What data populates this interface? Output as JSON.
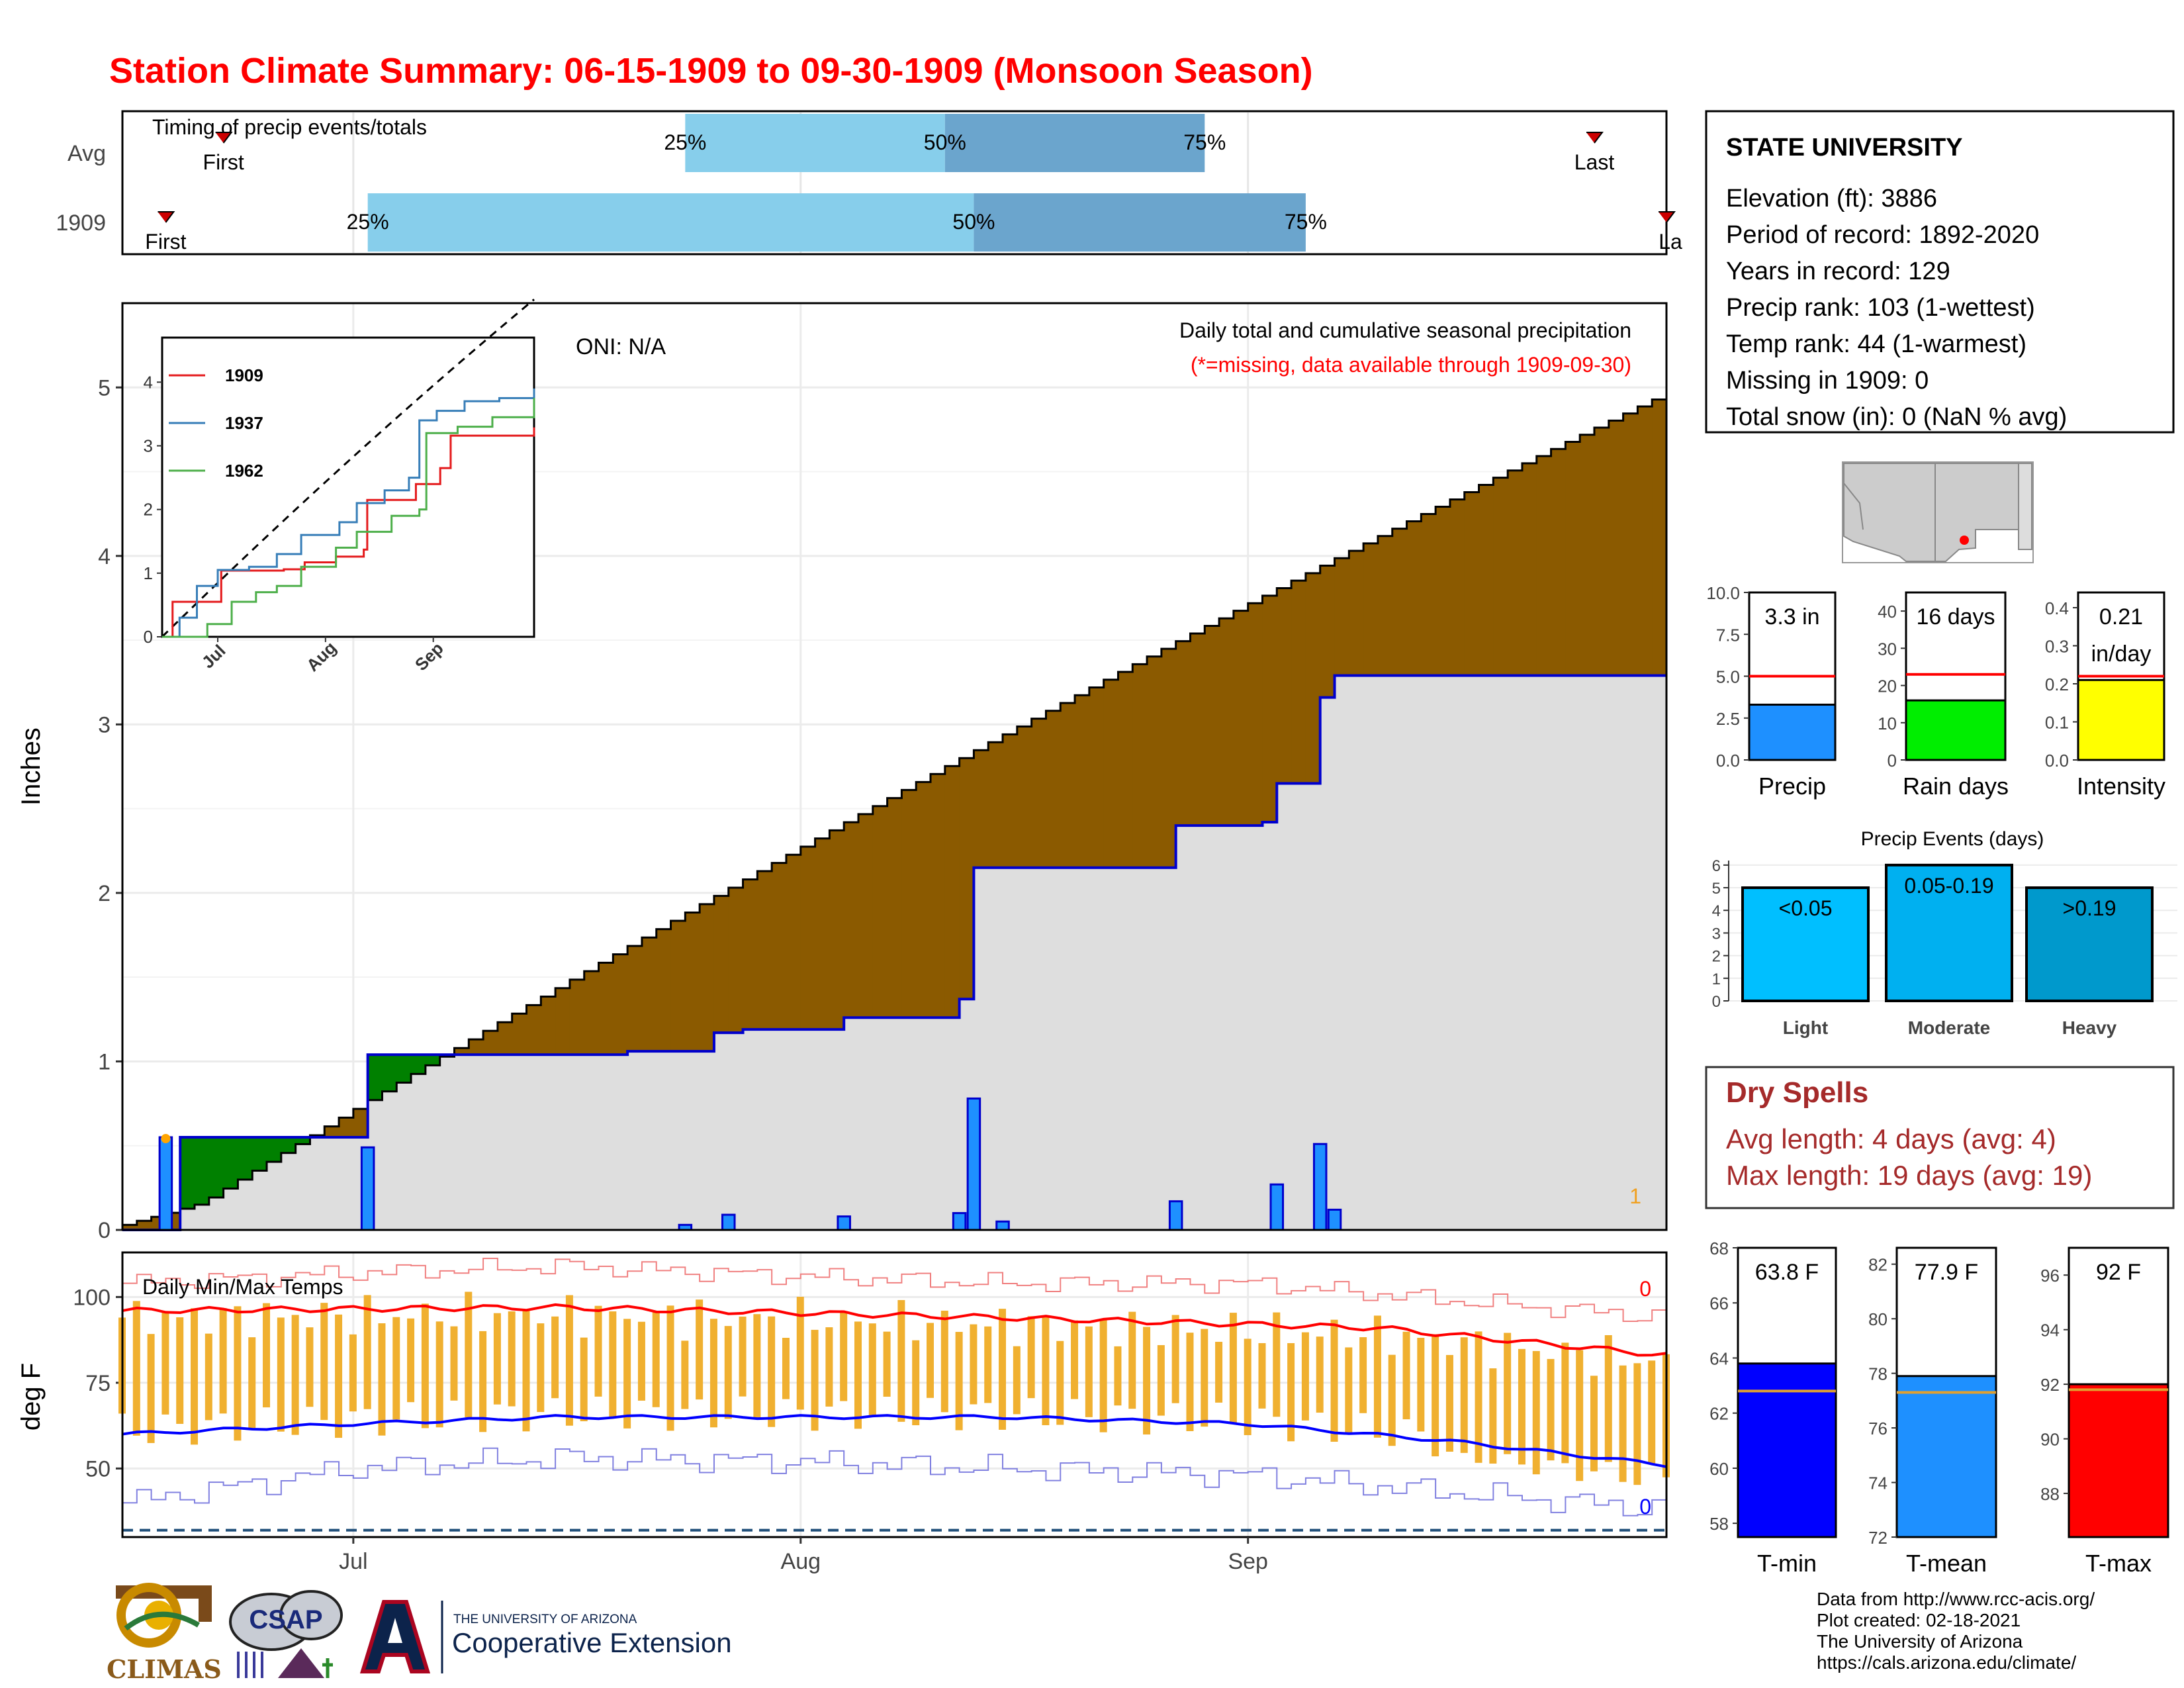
{
  "title": "Station Climate Summary: 06-15-1909 to 09-30-1909 (Monsoon Season)",
  "colors": {
    "title": "#ff0000",
    "precip_bar": "#1e90ff",
    "cum_fill": "#8b5a00",
    "below_fill": "#008000",
    "observed": "#0000cd",
    "tmax": "#ff0000",
    "tmin": "#0000ff",
    "tbar": "#f0b030",
    "light": "#00bfff",
    "moderate": "#00b0f0",
    "heavy": "#0099cc",
    "dry_spell": "#a52a2a"
  },
  "station": {
    "name": "STATE UNIVERSITY",
    "lines": [
      "Elevation (ft): 3886",
      "Period of record: 1892-2020",
      "Years in record: 129",
      "Precip rank: 103 (1-wettest)",
      "Temp rank: 44 (1-warmest)",
      "Missing in 1909: 0",
      "Total snow (in): 0 (NaN % avg)"
    ]
  },
  "dry_spells": {
    "title": "Dry Spells",
    "avg": "Avg length: 4 days (avg: 4)",
    "max": "Max length: 19 days (avg: 19)"
  },
  "footer": [
    "Data from http://www.rcc-acis.org/",
    "Plot created: 02-18-2021",
    "The University of Arizona",
    "https://cals.arizona.edu/climate/"
  ],
  "logos": {
    "climas": "CLIMAS",
    "csap": "CSAP",
    "ua_small": "THE UNIVERSITY OF ARIZONA",
    "ua_big": "Cooperative Extension"
  },
  "chart_data": [
    {
      "id": "timing",
      "type": "bar",
      "title": "Timing of precip events/totals",
      "rows": [
        {
          "label": "Avg",
          "first": "06-22",
          "p25": "07-24",
          "p50": "08-11",
          "p75": "08-29",
          "last": "09-25"
        },
        {
          "label": "1909",
          "first": "06-18",
          "p25": "07-02",
          "p50": "08-13",
          "p75": "09-05",
          "last": "09-30"
        }
      ],
      "marker_labels": {
        "first": "First",
        "last": "Last",
        "last_1909": "La",
        "p25": "25%",
        "p50": "50%",
        "p75": "75%"
      }
    },
    {
      "id": "precip",
      "type": "area",
      "title": "Daily total and cumulative seasonal precipitation",
      "subtitle": "(*=missing, data available through 1909-09-30)",
      "oni": "ONI: N/A",
      "ylabel": "Inches",
      "ylim": [
        0,
        5.5
      ],
      "yticks": [
        0,
        1,
        2,
        3,
        4,
        5
      ],
      "xticks": [
        "Jul",
        "Aug",
        "Sep"
      ],
      "corner_label": "1",
      "avg_cumulative": {
        "start": 0.03,
        "end": 4.97
      },
      "observed_cumulative_steps": [
        [
          "06-15",
          0
        ],
        [
          "06-19",
          0.55
        ],
        [
          "07-02",
          1.04
        ],
        [
          "07-20",
          1.06
        ],
        [
          "07-26",
          1.17
        ],
        [
          "07-28",
          1.19
        ],
        [
          "08-04",
          1.26
        ],
        [
          "08-12",
          1.37
        ],
        [
          "08-13",
          2.15
        ],
        [
          "08-27",
          2.4
        ],
        [
          "09-02",
          2.42
        ],
        [
          "09-03",
          2.65
        ],
        [
          "09-06",
          3.16
        ],
        [
          "09-07",
          3.29
        ],
        [
          "09-30",
          3.29
        ]
      ],
      "daily": [
        [
          "06-18",
          0.55
        ],
        [
          "07-02",
          0.49
        ],
        [
          "07-24",
          0.03
        ],
        [
          "07-27",
          0.09
        ],
        [
          "08-04",
          0.08
        ],
        [
          "08-12",
          0.1
        ],
        [
          "08-13",
          0.78
        ],
        [
          "08-15",
          0.05
        ],
        [
          "08-27",
          0.17
        ],
        [
          "09-03",
          0.27
        ],
        [
          "09-06",
          0.51
        ],
        [
          "09-07",
          0.12
        ]
      ]
    },
    {
      "id": "inset",
      "type": "line",
      "series": [
        {
          "name": "1909",
          "color": "#e41a1c",
          "points": [
            [
              "06-15",
              0
            ],
            [
              "06-18",
              0.55
            ],
            [
              "07-02",
              1.04
            ],
            [
              "07-20",
              1.06
            ],
            [
              "07-26",
              1.17
            ],
            [
              "08-04",
              1.26
            ],
            [
              "08-12",
              1.37
            ],
            [
              "08-13",
              2.15
            ],
            [
              "08-27",
              2.4
            ],
            [
              "09-03",
              2.65
            ],
            [
              "09-06",
              3.16
            ],
            [
              "09-30",
              3.29
            ]
          ]
        },
        {
          "name": "1937",
          "color": "#377eb8",
          "points": [
            [
              "06-15",
              0
            ],
            [
              "06-20",
              0.3
            ],
            [
              "06-25",
              0.8
            ],
            [
              "07-01",
              1.05
            ],
            [
              "07-10",
              1.1
            ],
            [
              "07-18",
              1.3
            ],
            [
              "07-25",
              1.6
            ],
            [
              "08-05",
              1.8
            ],
            [
              "08-10",
              2.1
            ],
            [
              "08-18",
              2.3
            ],
            [
              "08-25",
              2.5
            ],
            [
              "08-28",
              3.4
            ],
            [
              "09-02",
              3.55
            ],
            [
              "09-10",
              3.7
            ],
            [
              "09-20",
              3.75
            ],
            [
              "09-30",
              3.9
            ]
          ]
        },
        {
          "name": "1962",
          "color": "#4daf4a",
          "points": [
            [
              "06-15",
              0
            ],
            [
              "06-28",
              0.2
            ],
            [
              "07-05",
              0.55
            ],
            [
              "07-12",
              0.7
            ],
            [
              "07-18",
              0.8
            ],
            [
              "07-25",
              1.1
            ],
            [
              "08-04",
              1.4
            ],
            [
              "08-10",
              1.65
            ],
            [
              "08-20",
              1.9
            ],
            [
              "08-28",
              2.0
            ],
            [
              "08-30",
              3.2
            ],
            [
              "09-08",
              3.3
            ],
            [
              "09-18",
              3.45
            ],
            [
              "09-30",
              3.75
            ]
          ]
        }
      ],
      "avg_line": {
        "start": 0,
        "end": 5.3
      },
      "ylim": [
        0,
        4.7
      ],
      "yticks": [
        0,
        1,
        2,
        3,
        4
      ],
      "xticks": [
        "Jul",
        "Aug",
        "Sep"
      ]
    },
    {
      "id": "temps",
      "type": "bar",
      "title": "Daily Min/Max Temps",
      "ylabel": "deg F",
      "ylim": [
        30,
        113
      ],
      "yticks": [
        50,
        75,
        100
      ],
      "xticks": [
        "Jul",
        "Aug",
        "Sep"
      ],
      "corner_top": "0",
      "corner_bottom": "0",
      "avg_tmax": [
        [
          "06-15",
          96
        ],
        [
          "07-15",
          97
        ],
        [
          "08-15",
          94
        ],
        [
          "09-10",
          91
        ],
        [
          "09-30",
          83
        ]
      ],
      "avg_tmin": [
        [
          "06-15",
          60
        ],
        [
          "07-01",
          63
        ],
        [
          "07-15",
          65
        ],
        [
          "08-15",
          65
        ],
        [
          "09-01",
          63
        ],
        [
          "09-15",
          58
        ],
        [
          "09-30",
          51
        ]
      ],
      "record_max": [
        [
          "06-15",
          104
        ],
        [
          "07-01",
          107
        ],
        [
          "07-15",
          109
        ],
        [
          "08-01",
          106
        ],
        [
          "08-15",
          104
        ],
        [
          "09-01",
          104
        ],
        [
          "09-15",
          99
        ],
        [
          "09-30",
          94
        ]
      ],
      "record_min": [
        [
          "06-15",
          40
        ],
        [
          "07-01",
          50
        ],
        [
          "07-15",
          53
        ],
        [
          "08-01",
          52
        ],
        [
          "08-15",
          50
        ],
        [
          "09-01",
          48
        ],
        [
          "09-15",
          43
        ],
        [
          "09-30",
          38
        ]
      ],
      "freeze_line": 32
    },
    {
      "id": "summary_bars",
      "type": "bar",
      "panels": [
        {
          "label": "Precip",
          "value": 3.3,
          "value_text": "3.3 in",
          "avg": 5.0,
          "ylim": [
            0,
            10
          ],
          "yticks": [
            "0.0",
            "2.5",
            "5.0",
            "7.5",
            "10.0"
          ],
          "color": "#1e90ff"
        },
        {
          "label": "Rain days",
          "value": 16,
          "value_text": "16 days",
          "avg": 23,
          "ylim": [
            0,
            45
          ],
          "yticks": [
            "0",
            "10",
            "20",
            "30",
            "40"
          ],
          "color": "#00ee00"
        },
        {
          "label": "Intensity",
          "value": 0.21,
          "value_text": "0.21",
          "value_text2": "in/day",
          "avg": 0.22,
          "ylim": [
            0,
            0.44
          ],
          "yticks": [
            "0.0",
            "0.1",
            "0.2",
            "0.3",
            "0.4"
          ],
          "color": "#ffff00"
        }
      ]
    },
    {
      "id": "precip_events",
      "type": "bar",
      "title": "Precip Events (days)",
      "categories": [
        "Light",
        "Moderate",
        "Heavy"
      ],
      "bar_labels": [
        "<0.05",
        "0.05-0.19",
        ">0.19"
      ],
      "values": [
        5,
        6,
        5
      ],
      "ylim": [
        0,
        6.2
      ],
      "yticks": [
        "0",
        "1",
        "2",
        "3",
        "4",
        "5",
        "6"
      ]
    },
    {
      "id": "temp_bars",
      "type": "bar",
      "panels": [
        {
          "label": "T-min",
          "value": 63.8,
          "value_text": "63.8 F",
          "avg": 62.8,
          "ylim": [
            57.5,
            68
          ],
          "yticks": [
            "58",
            "60",
            "62",
            "64",
            "66",
            "68"
          ],
          "color": "#0000ff"
        },
        {
          "label": "T-mean",
          "value": 77.9,
          "value_text": "77.9 F",
          "avg": 77.3,
          "ylim": [
            72,
            82.6
          ],
          "yticks": [
            "72",
            "74",
            "76",
            "78",
            "80",
            "82"
          ],
          "color": "#1e90ff"
        },
        {
          "label": "T-max",
          "value": 92,
          "value_text": "92 F",
          "avg": 91.8,
          "ylim": [
            86.4,
            97
          ],
          "yticks": [
            "88",
            "90",
            "92",
            "94",
            "96"
          ],
          "color": "#ff0000"
        }
      ]
    }
  ]
}
